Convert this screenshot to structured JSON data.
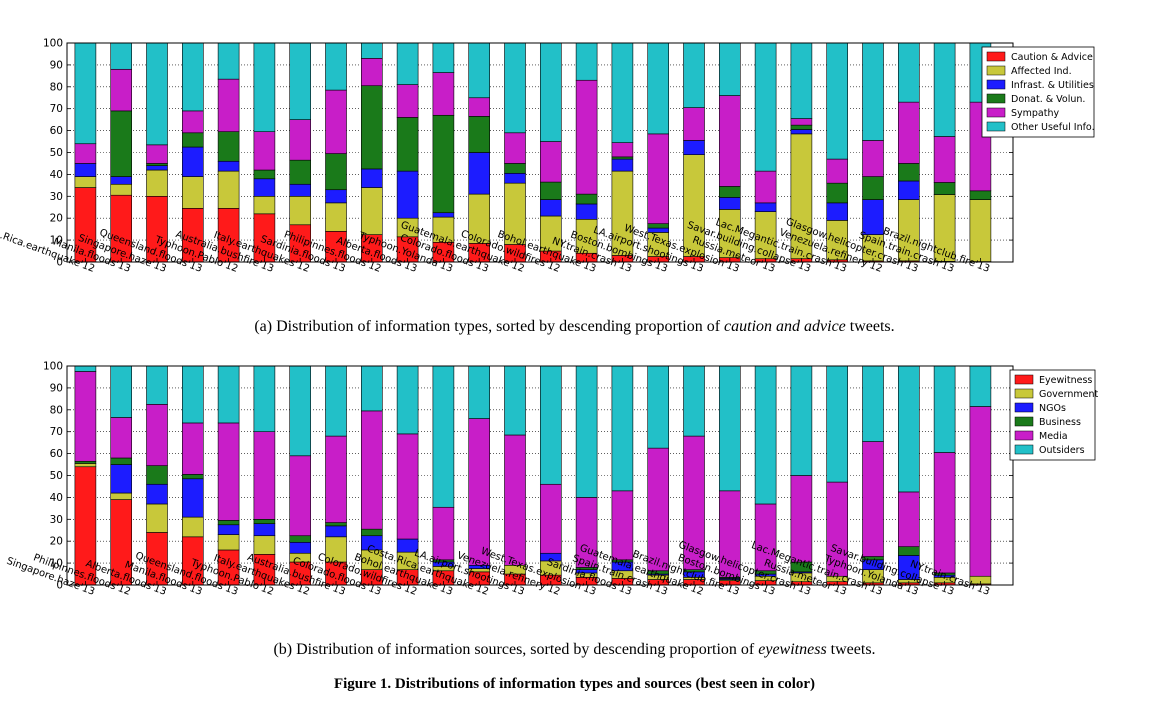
{
  "figure_title": "Figure 1. Distributions of information types and sources (best seen in color)",
  "captions": [
    {
      "prefix": "(a)  Distribution of information types, sorted by descending proportion of ",
      "em": "caution and advice",
      "suffix": " tweets."
    },
    {
      "prefix": "(b)  Distribution of information sources, sorted by descending proportion of ",
      "em": "eyewitness",
      "suffix": " tweets."
    }
  ],
  "chart_data": [
    {
      "type": "bar",
      "stacked": true,
      "ylim": [
        0,
        100
      ],
      "yticks": [
        0,
        10,
        20,
        30,
        40,
        50,
        60,
        70,
        80,
        90,
        100
      ],
      "grid": "dotted horizontal",
      "legend_position": "top-right",
      "categories": [
        "Costa.Rica.earthquake'12",
        "Manila.floods'13",
        "Singapore.haze'13",
        "Queensland.floods'13",
        "Typhoon.Pablo'12",
        "Australia.bushfire'13",
        "Italy.earthquakes'12",
        "Sardinia.floods'13",
        "Philipinnes.floods'12",
        "Alberta.floods'13",
        "Typhoon.Yolanda'13",
        "Colorado.floods'13",
        "Guatemala.earthquake'12",
        "Colorado.wildfires'12",
        "Bohol.earthquake'13",
        "NY.train.crash'13",
        "Boston.bombings'13",
        "LA.airport.shootings'13",
        "West.Texas.explosion'13",
        "Russia.meteor'13",
        "Savar.building.collapse'13",
        "Lac.Megantic.train.crash'13",
        "Venezuela.refinery'12",
        "Glasgow.helicopter.crash'13",
        "Spain.train.crash'13",
        "Brazil.nightclub.fire'13"
      ],
      "series": [
        {
          "name": "Caution & Advice",
          "color": "#ff1a1a",
          "values": [
            34,
            30.5,
            30,
            24.5,
            24.5,
            22,
            17,
            14,
            12.5,
            11.5,
            9,
            8.5,
            8,
            5,
            4,
            3,
            2.5,
            2.5,
            2,
            1.5,
            1.5,
            1,
            0.5,
            0.5,
            0.3,
            0.2
          ]
        },
        {
          "name": "Affected Ind.",
          "color": "#c8c83a",
          "values": [
            5,
            5,
            12,
            14.5,
            17,
            8,
            13,
            13,
            21.5,
            8.5,
            11.5,
            22.5,
            28,
            16,
            15.5,
            38.5,
            11,
            46.5,
            22,
            21.5,
            57,
            18,
            12,
            28,
            30.5,
            28.3
          ]
        },
        {
          "name": "Infrast. & Utilities",
          "color": "#1c1cff",
          "values": [
            6,
            3.5,
            2,
            13.5,
            4.5,
            8,
            5.5,
            6,
            8.5,
            21.5,
            2,
            19,
            4.5,
            7.5,
            7,
            5.5,
            2,
            6.5,
            5.5,
            4,
            2,
            8,
            16,
            8.5,
            0,
            0
          ]
        },
        {
          "name": "Donat. & Volun.",
          "color": "#1a7a1a",
          "values": [
            0,
            30,
            1,
            6.5,
            13.5,
            4,
            11,
            16.5,
            38,
            24.5,
            44.5,
            16.5,
            4.5,
            8,
            4.5,
            1,
            2,
            0,
            5,
            0,
            2,
            9,
            10.5,
            8,
            5.5,
            4
          ]
        },
        {
          "name": "Sympathy",
          "color": "#c81ec8",
          "values": [
            9,
            19,
            8.5,
            10,
            24,
            17.5,
            18.5,
            29,
            12.5,
            15,
            19.5,
            8.5,
            14,
            18.5,
            52,
            6.5,
            41,
            15,
            41.5,
            14.5,
            3,
            11,
            16.5,
            28,
            21,
            40.5
          ]
        },
        {
          "name": "Other Useful Info.",
          "color": "#22c0c8",
          "values": [
            46,
            12,
            46.5,
            31,
            16.5,
            40.5,
            35,
            21.5,
            7,
            19,
            13.5,
            25,
            41,
            45,
            17,
            45.5,
            41.5,
            29.5,
            24,
            58.5,
            34.5,
            53,
            44.5,
            27,
            42.7,
            27
          ]
        }
      ]
    },
    {
      "type": "bar",
      "stacked": true,
      "ylim": [
        0,
        100
      ],
      "yticks": [
        0,
        10,
        20,
        30,
        40,
        50,
        60,
        70,
        80,
        90,
        100
      ],
      "grid": "dotted horizontal",
      "legend_position": "top-right",
      "categories": [
        "Singapore.haze'13",
        "Philipinnes.floods'12",
        "Alberta.floods'13",
        "Manila.floods'13",
        "Queensland.floods'13",
        "Typhoon.Pablo'12",
        "Italy.earthquakes'12",
        "Australia.bushfire'13",
        "Colorado.floods'13",
        "Colorado.wildfires'12",
        "Bohol.earthquake'13",
        "Costa.Rica.earthquake'12",
        "LA.airport.shootings'13",
        "Venezuela.refinery'12",
        "West.Texas.explosion'13",
        "Sardinia.floods'13",
        "Spain.train.crash'13",
        "Guatemala.earthquake'12",
        "Brazil.nightclub.fire'13",
        "Boston.bombings'13",
        "Glasgow.helicopter.crash'13",
        "Russia.meteor'13",
        "Lac.Megantic.train.crash'13",
        "Typhoon.Yolanda'13",
        "Savar.building.collapse'13",
        "NY.train.crash'13"
      ],
      "series": [
        {
          "name": "Eyewitness",
          "color": "#ff1a1a",
          "values": [
            54,
            39,
            24,
            22,
            16,
            14,
            10.5,
            10.5,
            7,
            7,
            6.5,
            6,
            5,
            4.5,
            3.5,
            3,
            2.5,
            2.5,
            2,
            2,
            1.5,
            1.5,
            1,
            1,
            1,
            0.5
          ]
        },
        {
          "name": "Government",
          "color": "#c8c83a",
          "values": [
            1.5,
            3,
            13,
            9,
            7,
            8.5,
            4,
            11.5,
            9,
            8,
            2,
            1.5,
            4,
            6.5,
            2,
            3.5,
            2,
            1,
            0.5,
            2,
            4,
            2.5,
            6,
            1.5,
            2.5,
            3.5
          ]
        },
        {
          "name": "NGOs",
          "color": "#1c1cff",
          "values": [
            0,
            13,
            9,
            17.5,
            4.5,
            5.5,
            5,
            5,
            6.5,
            6,
            2,
            1.5,
            0,
            3.5,
            1.5,
            4,
            0.5,
            2.5,
            0.5,
            1,
            0.5,
            0,
            4.5,
            11,
            1,
            0
          ]
        },
        {
          "name": "Business",
          "color": "#1a7a1a",
          "values": [
            1,
            3,
            8.5,
            2,
            2,
            2,
            3,
            1.5,
            3,
            0,
            1,
            0,
            0,
            0,
            1,
            1,
            1.5,
            1,
            0.5,
            1.5,
            4.5,
            0,
            1.5,
            4,
            1,
            0
          ]
        },
        {
          "name": "Media",
          "color": "#c81ec8",
          "values": [
            41,
            18.5,
            28,
            23.5,
            44.5,
            40,
            36.5,
            39.5,
            54,
            48,
            24,
            67,
            59.5,
            31.5,
            32,
            31.5,
            56,
            61,
            39.5,
            30.5,
            39.5,
            43,
            52.5,
            25,
            55,
            77.5
          ]
        },
        {
          "name": "Outsiders",
          "color": "#22c0c8",
          "values": [
            2.5,
            23.5,
            17.5,
            26,
            26,
            30,
            41,
            32,
            20.5,
            31,
            64.5,
            24,
            31.5,
            54,
            60,
            57,
            37.5,
            32,
            57,
            63,
            50,
            53,
            34.5,
            57.5,
            39.5,
            18.5
          ]
        }
      ]
    }
  ]
}
